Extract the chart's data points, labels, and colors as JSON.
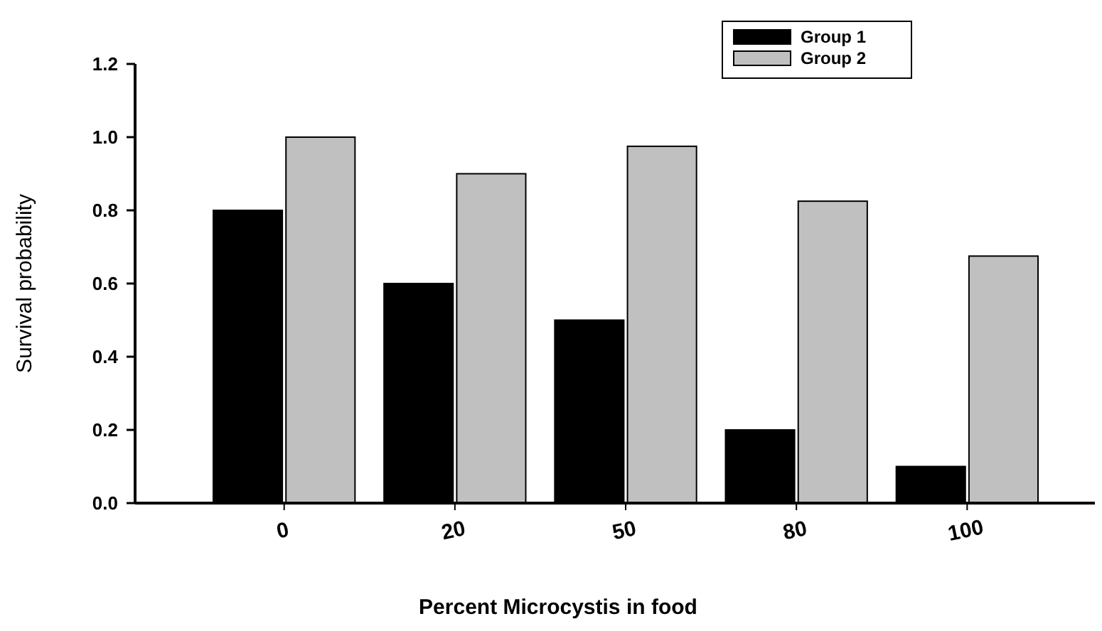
{
  "chart_data": {
    "type": "bar",
    "xlabel": "Percent Microcystis in food",
    "ylabel": "Survival probability",
    "categories": [
      "0",
      "20",
      "50",
      "80",
      "100"
    ],
    "series": [
      {
        "name": "Group 1",
        "color": "#000000",
        "values": [
          0.8,
          0.6,
          0.5,
          0.2,
          0.1
        ]
      },
      {
        "name": "Group 2",
        "color": "#c0c0c0",
        "values": [
          1.0,
          0.9,
          0.975,
          0.825,
          0.675
        ]
      }
    ],
    "ylim": [
      0,
      1.2
    ],
    "yticks": [
      {
        "value": 0,
        "label": "0.0"
      },
      {
        "value": 0.2,
        "label": "0.2"
      },
      {
        "value": 0.4,
        "label": "0.4"
      },
      {
        "value": 0.6,
        "label": "0.6"
      },
      {
        "value": 0.8,
        "label": "0.8"
      },
      {
        "value": 1,
        "label": "1.0"
      },
      {
        "value": 1.2,
        "label": "1.2"
      }
    ],
    "grid": false,
    "legend": "top right"
  }
}
